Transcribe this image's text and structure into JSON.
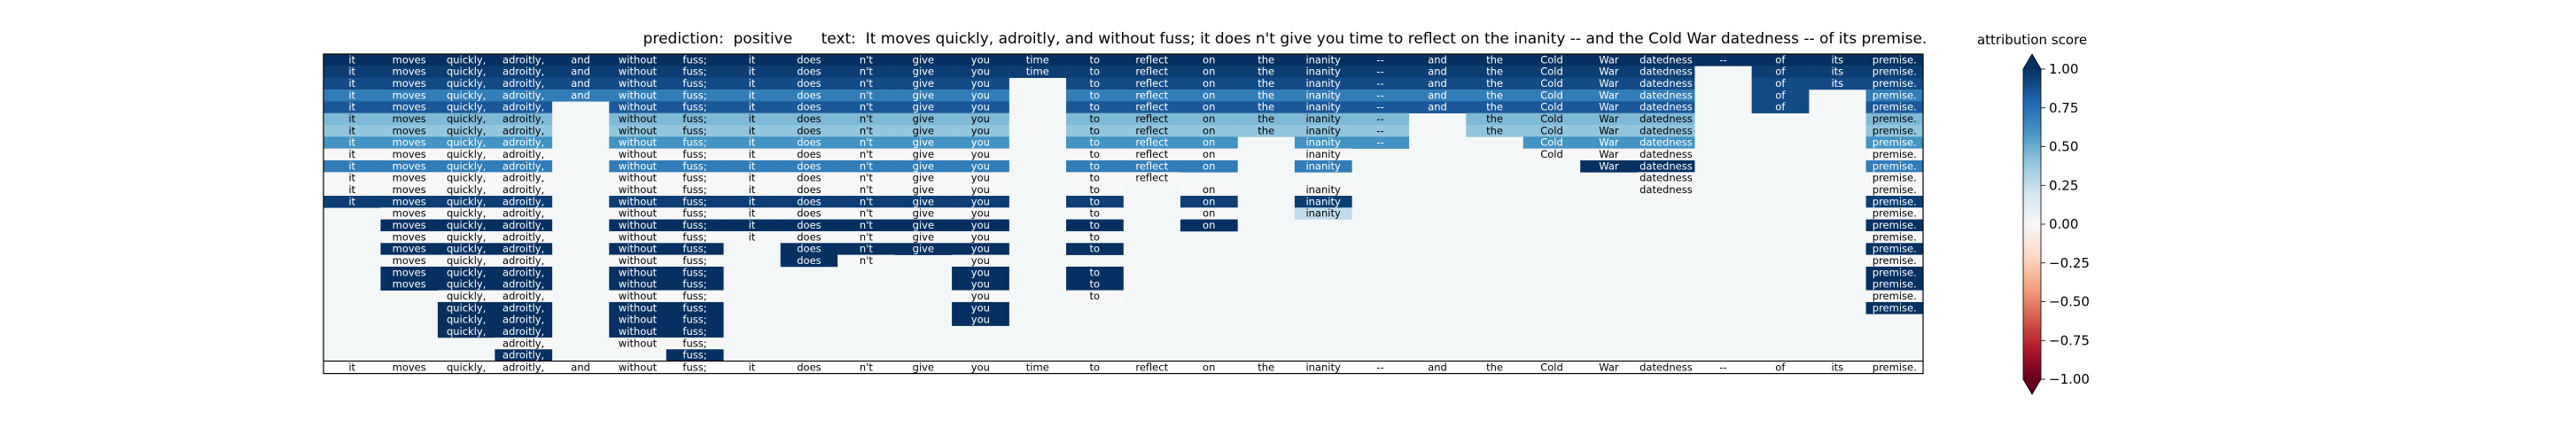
{
  "chart_data": {
    "type": "heatmap",
    "title_prefix": "prediction:",
    "prediction": "positive",
    "text_prefix": "text:",
    "text": "It moves quickly, adroitly, and without fuss; it does n't give you time to reflect on the inanity -- and the Cold War datedness -- of its premise.",
    "tokens": [
      "it",
      "moves",
      "quickly,",
      "adroitly,",
      "and",
      "without",
      "fuss;",
      "it",
      "does",
      "n't",
      "give",
      "you",
      "time",
      "to",
      "reflect",
      "on",
      "the",
      "inanity",
      "--",
      "and",
      "the",
      "Cold",
      "War",
      "datedness",
      "--",
      "of",
      "its",
      "premise."
    ],
    "row_format": "each row lists the retained (kept) token indices and their attribution scores; omitted tokens are masked",
    "rows": [
      {
        "kept": [
          0,
          1,
          2,
          3,
          4,
          5,
          6,
          7,
          8,
          9,
          10,
          11,
          12,
          13,
          14,
          15,
          16,
          17,
          18,
          19,
          20,
          21,
          22,
          23,
          24,
          25,
          26,
          27
        ],
        "scores": [
          1,
          1,
          1,
          1,
          1,
          1,
          1,
          1,
          1,
          1,
          1,
          1,
          1,
          1,
          1,
          1,
          1,
          1,
          1,
          1,
          1,
          1,
          1,
          1,
          1,
          1,
          1,
          1
        ]
      },
      {
        "kept": [
          0,
          1,
          2,
          3,
          4,
          5,
          6,
          7,
          8,
          9,
          10,
          11,
          12,
          13,
          14,
          15,
          16,
          17,
          18,
          19,
          20,
          21,
          22,
          23,
          25,
          26,
          27
        ],
        "scores": [
          0.95,
          0.95,
          0.95,
          0.95,
          0.95,
          0.95,
          0.95,
          0.95,
          0.95,
          0.95,
          0.95,
          0.95,
          0.95,
          0.95,
          0.95,
          0.95,
          0.95,
          0.95,
          0.95,
          0.95,
          0.95,
          0.95,
          0.95,
          0.95,
          0.95,
          0.95,
          0.95
        ]
      },
      {
        "kept": [
          0,
          1,
          2,
          3,
          4,
          5,
          6,
          7,
          8,
          9,
          10,
          11,
          13,
          14,
          15,
          16,
          17,
          18,
          19,
          20,
          21,
          22,
          23,
          25,
          26,
          27
        ],
        "scores": [
          0.9,
          0.9,
          0.9,
          0.9,
          0.9,
          0.9,
          0.9,
          0.9,
          0.9,
          0.9,
          0.9,
          0.9,
          0.9,
          0.9,
          0.9,
          0.9,
          0.9,
          0.9,
          0.9,
          0.9,
          0.9,
          0.9,
          0.9,
          0.9,
          0.9,
          0.9
        ]
      },
      {
        "kept": [
          0,
          1,
          2,
          3,
          4,
          5,
          6,
          7,
          8,
          9,
          10,
          11,
          13,
          14,
          15,
          16,
          17,
          18,
          19,
          20,
          21,
          22,
          23,
          25,
          27
        ],
        "scores": [
          0.7,
          0.7,
          0.7,
          0.7,
          0.7,
          0.7,
          0.7,
          0.7,
          0.7,
          0.7,
          0.7,
          0.7,
          0.7,
          0.7,
          0.7,
          0.7,
          0.7,
          0.7,
          0.7,
          0.7,
          0.7,
          0.7,
          0.7,
          0.9,
          0.7
        ]
      },
      {
        "kept": [
          0,
          1,
          2,
          3,
          5,
          6,
          7,
          8,
          9,
          10,
          11,
          13,
          14,
          15,
          16,
          17,
          18,
          19,
          20,
          21,
          22,
          23,
          25,
          27
        ],
        "scores": [
          0.85,
          0.85,
          0.85,
          0.85,
          0.85,
          0.85,
          0.85,
          0.85,
          0.85,
          0.85,
          0.85,
          0.85,
          0.85,
          0.85,
          0.85,
          0.85,
          0.85,
          0.85,
          0.85,
          0.85,
          0.85,
          0.85,
          0.9,
          0.85
        ]
      },
      {
        "kept": [
          0,
          1,
          2,
          3,
          5,
          6,
          7,
          8,
          9,
          10,
          11,
          13,
          14,
          15,
          16,
          17,
          18,
          20,
          21,
          22,
          23,
          27
        ],
        "scores": [
          0.45,
          0.45,
          0.45,
          0.45,
          0.45,
          0.45,
          0.45,
          0.45,
          0.45,
          0.45,
          0.45,
          0.45,
          0.45,
          0.45,
          0.45,
          0.45,
          0.45,
          0.45,
          0.45,
          0.45,
          0.45,
          0.45
        ]
      },
      {
        "kept": [
          0,
          1,
          2,
          3,
          5,
          6,
          7,
          8,
          9,
          10,
          11,
          13,
          14,
          15,
          16,
          17,
          18,
          20,
          21,
          22,
          23,
          27
        ],
        "scores": [
          0.4,
          0.4,
          0.4,
          0.4,
          0.4,
          0.4,
          0.4,
          0.4,
          0.4,
          0.4,
          0.4,
          0.4,
          0.4,
          0.4,
          0.4,
          0.4,
          0.4,
          0.4,
          0.4,
          0.4,
          0.4,
          0.4
        ]
      },
      {
        "kept": [
          0,
          1,
          2,
          3,
          5,
          6,
          7,
          8,
          9,
          10,
          11,
          13,
          14,
          15,
          17,
          18,
          21,
          22,
          23,
          27
        ],
        "scores": [
          0.6,
          0.6,
          0.6,
          0.6,
          0.6,
          0.6,
          0.6,
          0.6,
          0.6,
          0.6,
          0.6,
          0.6,
          0.6,
          0.6,
          0.6,
          0.6,
          0.6,
          0.6,
          0.6,
          0.6
        ]
      },
      {
        "kept": [
          0,
          1,
          2,
          3,
          5,
          6,
          7,
          8,
          9,
          10,
          11,
          13,
          14,
          15,
          17,
          21,
          22,
          23,
          27
        ],
        "scores": [
          0,
          0,
          0,
          0,
          0,
          0,
          0,
          0,
          0,
          0,
          0,
          0,
          0,
          0,
          0,
          0,
          0,
          0,
          0
        ]
      },
      {
        "kept": [
          0,
          1,
          2,
          3,
          5,
          6,
          7,
          8,
          9,
          10,
          11,
          13,
          14,
          15,
          17,
          22,
          23,
          27
        ],
        "scores": [
          0.7,
          0.7,
          0.7,
          0.7,
          0.7,
          0.7,
          0.7,
          0.7,
          0.7,
          0.7,
          0.7,
          0.7,
          0.7,
          0.7,
          0.7,
          1,
          1,
          0.7
        ]
      },
      {
        "kept": [
          0,
          1,
          2,
          3,
          5,
          6,
          7,
          8,
          9,
          10,
          11,
          13,
          14,
          23,
          27
        ],
        "scores": [
          0,
          0,
          0,
          0,
          0,
          0,
          0,
          0,
          0,
          0,
          0,
          0,
          0,
          0,
          0
        ]
      },
      {
        "kept": [
          0,
          1,
          2,
          3,
          5,
          6,
          7,
          8,
          9,
          10,
          11,
          13,
          15,
          17,
          23,
          27
        ],
        "scores": [
          0,
          0,
          0,
          0,
          0,
          0,
          0,
          0,
          0,
          0,
          0,
          0,
          0,
          0,
          0,
          0
        ]
      },
      {
        "kept": [
          0,
          1,
          2,
          3,
          5,
          6,
          7,
          8,
          9,
          10,
          11,
          13,
          15,
          17,
          27
        ],
        "scores": [
          0.95,
          0.95,
          0.95,
          0.95,
          0.95,
          0.95,
          0.95,
          0.95,
          0.95,
          0.95,
          0.95,
          0.95,
          0.95,
          0.95,
          0.95
        ]
      },
      {
        "kept": [
          1,
          2,
          3,
          5,
          6,
          7,
          8,
          9,
          10,
          11,
          13,
          15,
          17,
          27
        ],
        "scores": [
          0,
          0,
          0,
          0,
          0,
          0,
          0,
          0,
          0,
          0,
          0,
          0,
          0.25,
          0
        ]
      },
      {
        "kept": [
          1,
          2,
          3,
          5,
          6,
          7,
          8,
          9,
          10,
          11,
          13,
          15,
          27
        ],
        "scores": [
          1,
          1,
          1,
          1,
          1,
          1,
          1,
          1,
          1,
          1,
          1,
          1,
          1
        ]
      },
      {
        "kept": [
          1,
          2,
          3,
          5,
          6,
          7,
          8,
          9,
          10,
          11,
          13,
          27
        ],
        "scores": [
          0,
          0,
          0,
          0,
          0,
          0,
          0,
          0,
          0,
          0,
          0,
          0
        ]
      },
      {
        "kept": [
          1,
          2,
          3,
          5,
          6,
          8,
          9,
          10,
          11,
          13,
          27
        ],
        "scores": [
          1,
          1,
          1,
          1,
          1,
          1,
          1,
          1,
          1,
          1,
          1
        ]
      },
      {
        "kept": [
          1,
          2,
          3,
          5,
          6,
          8,
          9,
          11,
          27
        ],
        "scores": [
          0,
          0,
          0,
          0,
          0,
          1,
          0,
          0,
          0
        ]
      },
      {
        "kept": [
          1,
          2,
          3,
          5,
          6,
          11,
          13,
          27
        ],
        "scores": [
          1,
          1,
          1,
          1,
          1,
          1,
          1,
          1
        ]
      },
      {
        "kept": [
          1,
          2,
          3,
          5,
          6,
          11,
          13,
          27
        ],
        "scores": [
          1,
          1,
          1,
          1,
          1,
          1,
          1,
          1
        ]
      },
      {
        "kept": [
          2,
          3,
          5,
          6,
          11,
          13,
          27
        ],
        "scores": [
          0,
          0,
          0,
          0,
          0,
          0,
          0
        ]
      },
      {
        "kept": [
          2,
          3,
          5,
          6,
          11,
          27
        ],
        "scores": [
          1,
          1,
          1,
          1,
          1,
          1
        ]
      },
      {
        "kept": [
          2,
          3,
          5,
          6,
          11
        ],
        "scores": [
          1,
          1,
          1,
          1,
          1
        ]
      },
      {
        "kept": [
          2,
          3,
          5,
          6
        ],
        "scores": [
          1,
          1,
          1,
          1
        ]
      },
      {
        "kept": [
          3,
          5,
          6
        ],
        "scores": [
          0,
          0,
          0
        ]
      },
      {
        "kept": [
          3,
          6
        ],
        "scores": [
          1,
          1
        ]
      }
    ],
    "mask_color": "#f4f7f7",
    "colorbar": {
      "label": "attribution score",
      "min": -1.0,
      "max": 1.0,
      "ticks": [
        "1.00",
        "0.75",
        "0.50",
        "0.25",
        "0.00",
        "−0.25",
        "−0.50",
        "−0.75",
        "−1.00"
      ],
      "tick_values": [
        1,
        0.75,
        0.5,
        0.25,
        0,
        -0.25,
        -0.5,
        -0.75,
        -1
      ],
      "colormap": "RdBu",
      "extend": "both"
    }
  }
}
